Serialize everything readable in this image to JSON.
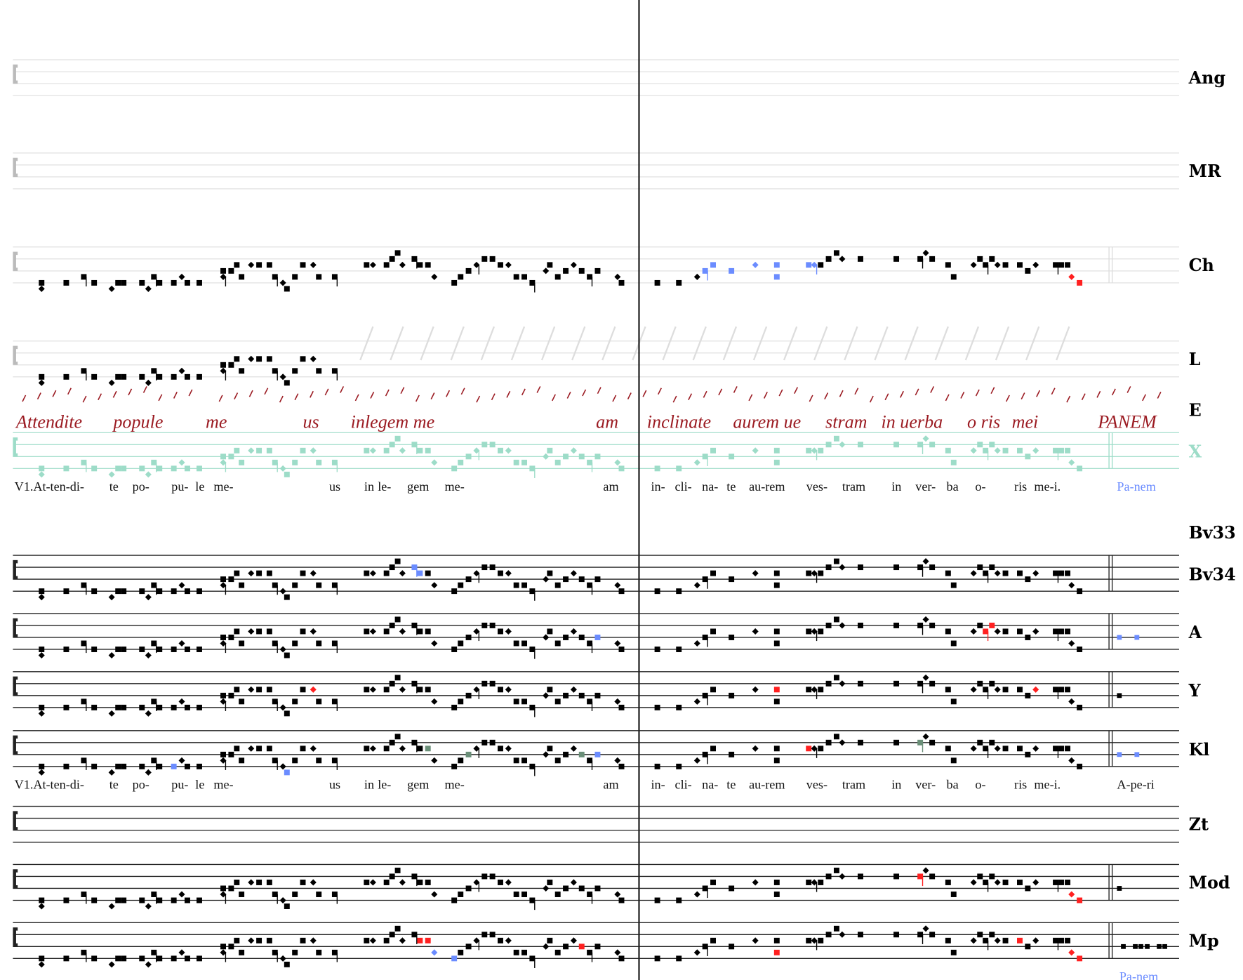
{
  "staff_labels": {
    "ang": "Ang",
    "mr": "MR",
    "ch": "Ch",
    "l": "L",
    "e": "E",
    "x": "X",
    "bv33": "Bv33",
    "bv34": "Bv34",
    "a": "A",
    "y": "Y",
    "kl": "Kl",
    "zt": "Zt",
    "mod": "Mod",
    "mp": "Mp"
  },
  "lyrics_top": [
    "V1.At-ten-di-",
    "te",
    "po-",
    "pu-",
    "le",
    "me-",
    "us",
    "in",
    "le-",
    "gem",
    "me-",
    "am",
    "in-",
    "cli-",
    "na-",
    "te",
    "au-rem",
    "ves-",
    "tram",
    "in",
    "ver-",
    "ba",
    "o-",
    "ris",
    "me-i."
  ],
  "lyrics_top_end": "Pa-nem",
  "lyrics_mid": [
    "V1.At-ten-di-",
    "te",
    "po-",
    "pu-",
    "le",
    "me-",
    "us",
    "in",
    "le-",
    "gem",
    "me-",
    "am",
    "in-",
    "cli-",
    "na-",
    "te",
    "au-rem",
    "ves-",
    "tram",
    "in",
    "ver-",
    "ba",
    "o-",
    "ris",
    "me-i."
  ],
  "lyrics_mid_end": "A-pe-ri",
  "lyrics_bottom_end": "Pa-nem",
  "manuscript_text": [
    "Attendite",
    "popule",
    "me",
    "us",
    "inlegem me",
    "am",
    "inclinate",
    "aurem ue",
    "stram",
    "in uerba",
    "o ris",
    "mei",
    "PANEM"
  ],
  "colors": {
    "manuscript": "#9b1b22",
    "x_staff": "#9ddcc8",
    "highlight_blue": "#6b8cff",
    "highlight_red": "#ff2020",
    "highlight_green": "#6a8f78",
    "label_blue": "#6b8cff"
  }
}
